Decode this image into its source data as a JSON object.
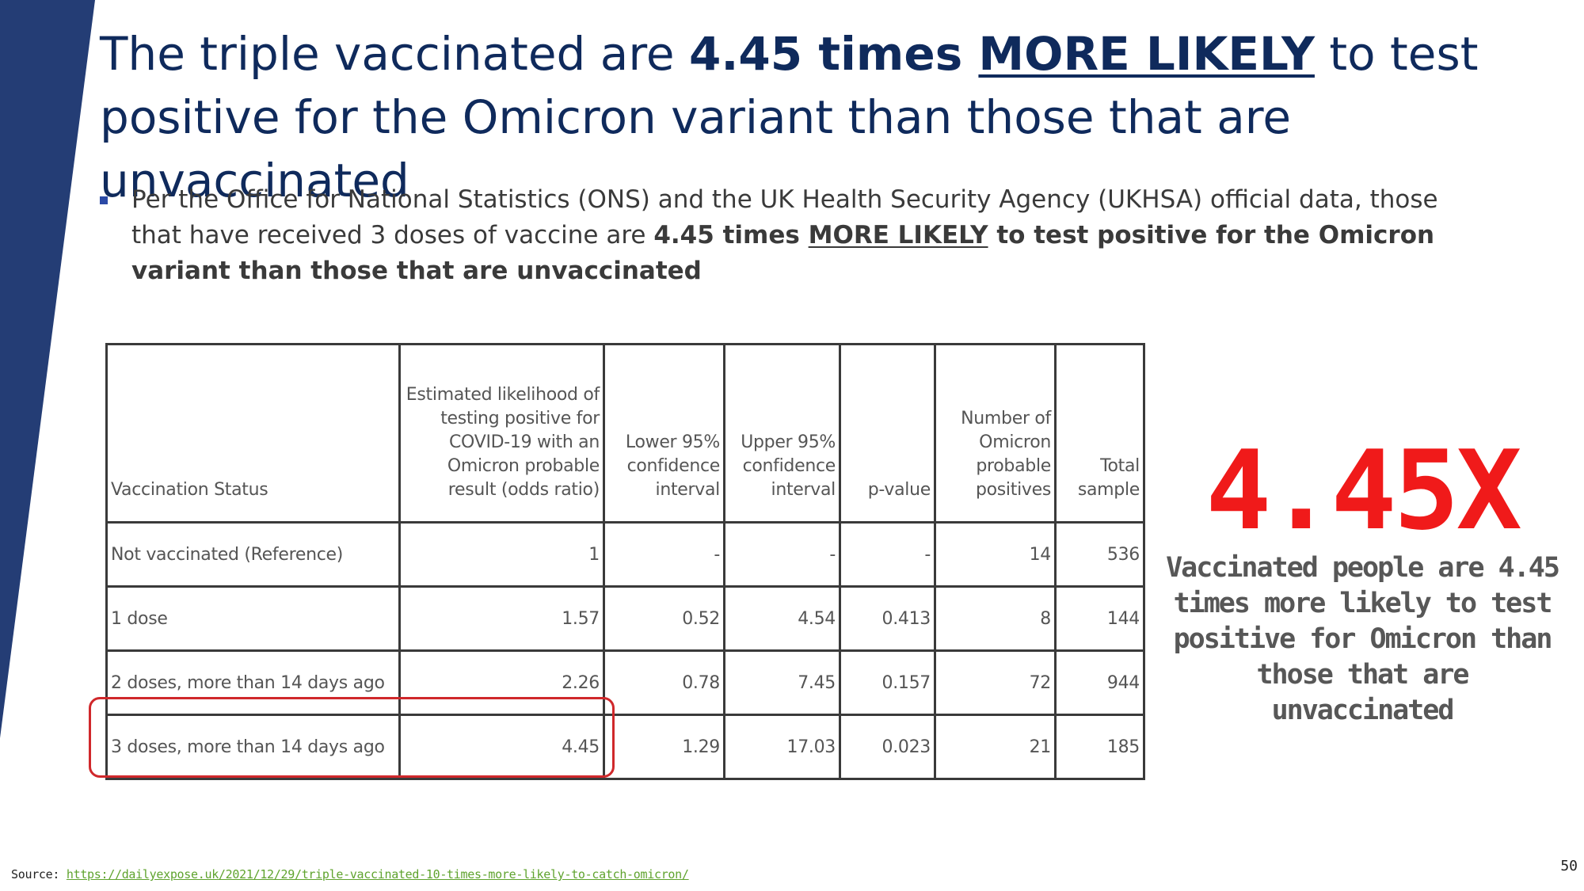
{
  "colors": {
    "side_band": "#243d75",
    "title_text": "#0f2a5c",
    "highlight_red": "#f01a1a",
    "box_red": "#d0282b",
    "bullet_marker": "#2b4aa6",
    "source_link": "#5fa32e"
  },
  "title": {
    "part1": "The triple vaccinated are ",
    "bold": "4.45 times ",
    "underlined": "MORE LIKELY",
    "part2": " to test positive for the Omicron variant than those that are unvaccinated"
  },
  "bullet": {
    "marker_icon": "square-bullet-icon",
    "text_plain": "Per the Office for National Statistics (ONS) and the UK Health Security Agency (UKHSA) official data, those that have received 3 doses of vaccine are ",
    "text_bold": "4.45 times ",
    "text_underlined": "MORE LIKELY",
    "text_bold_tail": " to test positive for the Omicron variant than those that are unvaccinated"
  },
  "table": {
    "headers": [
      "Vaccination Status",
      "Estimated likelihood of testing positive for COVID-19 with an Omicron probable result (odds ratio)",
      "Lower 95% confidence interval",
      "Upper 95% confidence interval",
      "p-value",
      "Number of Omicron probable positives",
      "Total sample"
    ],
    "rows": [
      [
        "Not vaccinated (Reference)",
        "1",
        "-",
        "-",
        "-",
        "14",
        "536"
      ],
      [
        "1 dose",
        "1.57",
        "0.52",
        "4.54",
        "0.413",
        "8",
        "144"
      ],
      [
        "2 doses, more than 14 days ago",
        "2.26",
        "0.78",
        "7.45",
        "0.157",
        "72",
        "944"
      ],
      [
        "3 doses, more than 14 days ago",
        "4.45",
        "1.29",
        "17.03",
        "0.023",
        "21",
        "185"
      ]
    ]
  },
  "callout": {
    "big_number": "4.45X",
    "caption": "Vaccinated people are 4.45 times more likely to test positive for Omicron than those that are unvaccinated"
  },
  "footer": {
    "source_label": "Source: ",
    "source_url": "https://dailyexpose.uk/2021/12/29/triple-vaccinated-10-times-more-likely-to-catch-omicron/",
    "page_number": "50"
  }
}
